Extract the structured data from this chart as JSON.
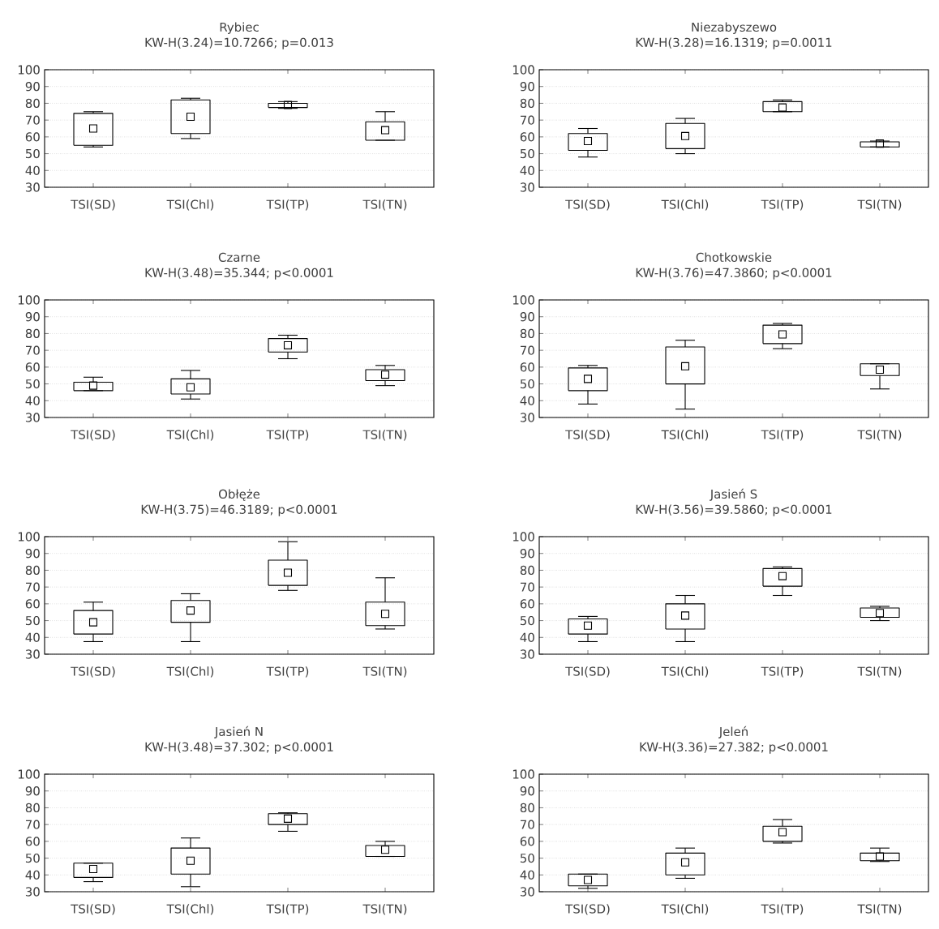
{
  "chart_data": [
    {
      "type": "box",
      "title": "Rybiec",
      "subtitle": "KW-H(3.24)=10.7266; p=0.013",
      "categories": [
        "TSI(SD)",
        "TSI(Chl)",
        "TSI(TP)",
        "TSI(TN)"
      ],
      "ylim": [
        30,
        100
      ],
      "yticks": [
        30,
        40,
        50,
        60,
        70,
        80,
        90,
        100
      ],
      "grid": "y",
      "marker": "square",
      "boxes": [
        {
          "low": 54,
          "q1": 55,
          "median": 65,
          "q3": 74,
          "high": 75
        },
        {
          "low": 59,
          "q1": 62,
          "median": 72,
          "q3": 82,
          "high": 83
        },
        {
          "low": 77,
          "q1": 77.5,
          "median": 79,
          "q3": 80,
          "high": 81
        },
        {
          "low": 58,
          "q1": 58,
          "median": 64,
          "q3": 69,
          "high": 75
        }
      ]
    },
    {
      "type": "box",
      "title": "Niezabyszewo",
      "subtitle": "KW-H(3.28)=16.1319; p=0.0011",
      "categories": [
        "TSI(SD)",
        "TSI(Chl)",
        "TSI(TP)",
        "TSI(TN)"
      ],
      "ylim": [
        30,
        100
      ],
      "yticks": [
        30,
        40,
        50,
        60,
        70,
        80,
        90,
        100
      ],
      "grid": "y",
      "marker": "square",
      "boxes": [
        {
          "low": 48,
          "q1": 52,
          "median": 57.5,
          "q3": 62,
          "high": 65
        },
        {
          "low": 50,
          "q1": 53,
          "median": 60.5,
          "q3": 68,
          "high": 71
        },
        {
          "low": 75,
          "q1": 75,
          "median": 77.5,
          "q3": 81,
          "high": 82
        },
        {
          "low": 54,
          "q1": 54,
          "median": 56,
          "q3": 57,
          "high": 57.5
        }
      ]
    },
    {
      "type": "box",
      "title": "Czarne",
      "subtitle": "KW-H(3.48)=35.344; p<0.0001",
      "categories": [
        "TSI(SD)",
        "TSI(Chl)",
        "TSI(TP)",
        "TSI(TN)"
      ],
      "ylim": [
        30,
        100
      ],
      "yticks": [
        30,
        40,
        50,
        60,
        70,
        80,
        90,
        100
      ],
      "grid": "y",
      "marker": "square",
      "boxes": [
        {
          "low": 46,
          "q1": 46,
          "median": 49,
          "q3": 51,
          "high": 54
        },
        {
          "low": 41,
          "q1": 44,
          "median": 48,
          "q3": 53,
          "high": 58
        },
        {
          "low": 65,
          "q1": 69,
          "median": 73,
          "q3": 77,
          "high": 79
        },
        {
          "low": 49,
          "q1": 52,
          "median": 55.5,
          "q3": 58.5,
          "high": 61
        }
      ]
    },
    {
      "type": "box",
      "title": "Chotkowskie",
      "subtitle": "KW-H(3.76)=47.3860; p<0.0001",
      "categories": [
        "TSI(SD)",
        "TSI(Chl)",
        "TSI(TP)",
        "TSI(TN)"
      ],
      "ylim": [
        30,
        100
      ],
      "yticks": [
        30,
        40,
        50,
        60,
        70,
        80,
        90,
        100
      ],
      "grid": "y",
      "marker": "square",
      "boxes": [
        {
          "low": 38,
          "q1": 46,
          "median": 53,
          "q3": 59.5,
          "high": 61
        },
        {
          "low": 35,
          "q1": 50,
          "median": 60.5,
          "q3": 72,
          "high": 76
        },
        {
          "low": 71,
          "q1": 74,
          "median": 79.5,
          "q3": 85,
          "high": 86
        },
        {
          "low": 47,
          "q1": 55,
          "median": 58.5,
          "q3": 62,
          "high": 62
        }
      ]
    },
    {
      "type": "box",
      "title": "Obłęże",
      "subtitle": "KW-H(3.75)=46.3189; p<0.0001",
      "categories": [
        "TSI(SD)",
        "TSI(Chl)",
        "TSI(TP)",
        "TSI(TN)"
      ],
      "ylim": [
        30,
        100
      ],
      "yticks": [
        30,
        40,
        50,
        60,
        70,
        80,
        90,
        100
      ],
      "grid": "y",
      "marker": "square",
      "boxes": [
        {
          "low": 37.5,
          "q1": 42,
          "median": 49,
          "q3": 56,
          "high": 61
        },
        {
          "low": 37.5,
          "q1": 49,
          "median": 56,
          "q3": 62,
          "high": 66
        },
        {
          "low": 68,
          "q1": 71,
          "median": 78.5,
          "q3": 86,
          "high": 97
        },
        {
          "low": 45,
          "q1": 47,
          "median": 54,
          "q3": 61,
          "high": 75.5
        }
      ]
    },
    {
      "type": "box",
      "title": "Jasień S",
      "subtitle": "KW-H(3.56)=39.5860; p<0.0001",
      "categories": [
        "TSI(SD)",
        "TSI(Chl)",
        "TSI(TP)",
        "TSI(TN)"
      ],
      "ylim": [
        30,
        100
      ],
      "yticks": [
        30,
        40,
        50,
        60,
        70,
        80,
        90,
        100
      ],
      "grid": "y",
      "marker": "square",
      "boxes": [
        {
          "low": 37.5,
          "q1": 42,
          "median": 47,
          "q3": 51,
          "high": 52.5
        },
        {
          "low": 37.5,
          "q1": 45,
          "median": 53,
          "q3": 60,
          "high": 65
        },
        {
          "low": 65,
          "q1": 70.5,
          "median": 76.5,
          "q3": 81,
          "high": 82
        },
        {
          "low": 50,
          "q1": 52,
          "median": 54.5,
          "q3": 57.5,
          "high": 58.5
        }
      ]
    },
    {
      "type": "box",
      "title": "Jasień N",
      "subtitle": "KW-H(3.48)=37.302; p<0.0001",
      "categories": [
        "TSI(SD)",
        "TSI(Chl)",
        "TSI(TP)",
        "TSI(TN)"
      ],
      "ylim": [
        30,
        100
      ],
      "yticks": [
        30,
        40,
        50,
        60,
        70,
        80,
        90,
        100
      ],
      "grid": "y",
      "marker": "square",
      "boxes": [
        {
          "low": 36,
          "q1": 38.5,
          "median": 43.5,
          "q3": 47,
          "high": 47
        },
        {
          "low": 33,
          "q1": 40.5,
          "median": 48.5,
          "q3": 56,
          "high": 62
        },
        {
          "low": 66,
          "q1": 70,
          "median": 73.5,
          "q3": 76.5,
          "high": 77
        },
        {
          "low": 51,
          "q1": 51,
          "median": 55,
          "q3": 57.5,
          "high": 60
        }
      ]
    },
    {
      "type": "box",
      "title": "Jeleń",
      "subtitle": "KW-H(3.36)=27.382; p<0.0001",
      "categories": [
        "TSI(SD)",
        "TSI(Chl)",
        "TSI(TP)",
        "TSI(TN)"
      ],
      "ylim": [
        30,
        100
      ],
      "yticks": [
        30,
        40,
        50,
        60,
        70,
        80,
        90,
        100
      ],
      "grid": "y",
      "marker": "square",
      "boxes": [
        {
          "low": 32,
          "q1": 33.5,
          "median": 37,
          "q3": 40.5,
          "high": 40.5
        },
        {
          "low": 38,
          "q1": 40,
          "median": 47.5,
          "q3": 53,
          "high": 56
        },
        {
          "low": 59,
          "q1": 60,
          "median": 65.5,
          "q3": 69,
          "high": 73
        },
        {
          "low": 48,
          "q1": 48.5,
          "median": 51,
          "q3": 53,
          "high": 56
        }
      ]
    }
  ]
}
